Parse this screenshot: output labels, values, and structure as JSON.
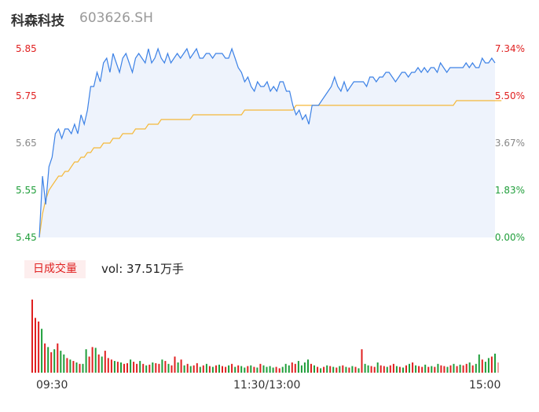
{
  "header": {
    "name": "科森科技",
    "code": "603626.SH"
  },
  "volume_panel": {
    "label": "日成交量",
    "volume_text": "vol: 37.51万手"
  },
  "colors": {
    "price_line": "#3d82e6",
    "avg_line": "#f5b93a",
    "up": "#e02020",
    "down": "#1f9e3a",
    "flat": "#888888",
    "area_fill": "#eef3fc"
  },
  "chart_data": [
    {
      "type": "line",
      "title": "",
      "ylim": [
        5.45,
        5.85
      ],
      "y_ticks_left": [
        "5.85",
        "5.75",
        "5.65",
        "5.55",
        "5.45"
      ],
      "y_ticks_right": [
        "7.34%",
        "5.50%",
        "3.67%",
        "1.83%",
        "0.00%"
      ],
      "x_ticks": [
        "09:30",
        "11:30/13:00",
        "15:00"
      ],
      "grid": false,
      "series": [
        {
          "values": [
            5.45,
            5.58,
            5.52,
            5.6,
            5.62,
            5.67,
            5.68,
            5.66,
            5.68,
            5.68,
            5.67,
            5.69,
            5.67,
            5.71,
            5.69,
            5.72,
            5.77,
            5.77,
            5.8,
            5.78,
            5.82,
            5.83,
            5.8,
            5.84,
            5.82,
            5.8,
            5.83,
            5.84,
            5.82,
            5.8,
            5.83,
            5.84,
            5.83,
            5.82,
            5.85,
            5.82,
            5.83,
            5.85,
            5.83,
            5.82,
            5.84,
            5.82,
            5.83,
            5.84,
            5.83,
            5.84,
            5.85,
            5.83,
            5.84,
            5.85,
            5.83,
            5.83,
            5.84,
            5.84,
            5.83,
            5.84,
            5.84,
            5.84,
            5.83,
            5.83,
            5.85,
            5.83,
            5.81,
            5.8,
            5.78,
            5.79,
            5.77,
            5.76,
            5.78,
            5.77,
            5.77,
            5.78,
            5.76,
            5.77,
            5.76,
            5.78,
            5.78,
            5.76,
            5.76,
            5.73,
            5.71,
            5.72,
            5.7,
            5.71,
            5.69,
            5.73,
            5.73,
            5.73,
            5.74,
            5.75,
            5.76,
            5.77,
            5.79,
            5.77,
            5.76,
            5.78,
            5.76,
            5.77,
            5.78,
            5.78,
            5.78,
            5.78,
            5.77,
            5.79,
            5.79,
            5.78,
            5.79,
            5.79,
            5.8,
            5.8,
            5.79,
            5.78,
            5.79,
            5.8,
            5.8,
            5.79,
            5.8,
            5.8,
            5.81,
            5.8,
            5.81,
            5.8,
            5.81,
            5.81,
            5.8,
            5.82,
            5.81,
            5.8,
            5.81,
            5.81,
            5.81,
            5.81,
            5.81,
            5.82,
            5.81,
            5.82,
            5.81,
            5.81,
            5.83,
            5.82,
            5.82,
            5.83,
            5.82
          ]
        },
        {
          "values": [
            5.45,
            5.5,
            5.53,
            5.55,
            5.56,
            5.57,
            5.58,
            5.58,
            5.59,
            5.59,
            5.6,
            5.61,
            5.61,
            5.62,
            5.62,
            5.63,
            5.63,
            5.64,
            5.64,
            5.64,
            5.65,
            5.65,
            5.65,
            5.66,
            5.66,
            5.66,
            5.67,
            5.67,
            5.67,
            5.67,
            5.68,
            5.68,
            5.68,
            5.68,
            5.69,
            5.69,
            5.69,
            5.69,
            5.7,
            5.7,
            5.7,
            5.7,
            5.7,
            5.7,
            5.7,
            5.7,
            5.7,
            5.7,
            5.71,
            5.71,
            5.71,
            5.71,
            5.71,
            5.71,
            5.71,
            5.71,
            5.71,
            5.71,
            5.71,
            5.71,
            5.71,
            5.71,
            5.71,
            5.71,
            5.72,
            5.72,
            5.72,
            5.72,
            5.72,
            5.72,
            5.72,
            5.72,
            5.72,
            5.72,
            5.72,
            5.72,
            5.72,
            5.72,
            5.72,
            5.72,
            5.73,
            5.73,
            5.73,
            5.73,
            5.73,
            5.73,
            5.73,
            5.73,
            5.73,
            5.73,
            5.73,
            5.73,
            5.73,
            5.73,
            5.73,
            5.73,
            5.73,
            5.73,
            5.73,
            5.73,
            5.73,
            5.73,
            5.73,
            5.73,
            5.73,
            5.73,
            5.73,
            5.73,
            5.73,
            5.73,
            5.73,
            5.73,
            5.73,
            5.73,
            5.73,
            5.73,
            5.73,
            5.73,
            5.73,
            5.73,
            5.73,
            5.73,
            5.73,
            5.73,
            5.73,
            5.73,
            5.73,
            5.73,
            5.73,
            5.73,
            5.74,
            5.74,
            5.74,
            5.74,
            5.74,
            5.74,
            5.74,
            5.74,
            5.74,
            5.74,
            5.74,
            5.74,
            5.74,
            5.74,
            5.74
          ]
        }
      ]
    },
    {
      "type": "bar",
      "title": "",
      "x_ticks": [
        "09:30",
        "11:30/13:00",
        "15:00"
      ],
      "series": [
        {
          "values": [
            100,
            75,
            70,
            60,
            40,
            35,
            28,
            32,
            40,
            30,
            25,
            20,
            18,
            16,
            14,
            12,
            12,
            32,
            22,
            35,
            34,
            25,
            22,
            30,
            20,
            18,
            16,
            15,
            14,
            12,
            13,
            18,
            15,
            12,
            16,
            12,
            10,
            11,
            14,
            13,
            12,
            18,
            16,
            12,
            10,
            22,
            14,
            18,
            10,
            12,
            9,
            10,
            13,
            8,
            10,
            12,
            9,
            8,
            10,
            11,
            9,
            8,
            10,
            12,
            8,
            10,
            9,
            7,
            9,
            10,
            8,
            7,
            12,
            10,
            8,
            9,
            7,
            8,
            6,
            8,
            12,
            10,
            14,
            12,
            16,
            10,
            14,
            18,
            12,
            10,
            8,
            6,
            8,
            10,
            9,
            8,
            7,
            9,
            10,
            8,
            7,
            9,
            8,
            6,
            32,
            12,
            10,
            9,
            8,
            14,
            10,
            9,
            8,
            10,
            12,
            9,
            8,
            7,
            10,
            12,
            14,
            10,
            9,
            8,
            11,
            8,
            9,
            8,
            12,
            10,
            9,
            8,
            10,
            12,
            9,
            11,
            10,
            12,
            14,
            10,
            12,
            25,
            18,
            15,
            20,
            22,
            26,
            14
          ],
          "direction": [
            "up",
            "up",
            "up",
            "down",
            "up",
            "down",
            "up",
            "down",
            "up",
            "down",
            "down",
            "up",
            "down",
            "up",
            "down",
            "up",
            "down",
            "down",
            "up",
            "up",
            "down",
            "up",
            "down",
            "up",
            "up",
            "up",
            "down",
            "up",
            "down",
            "up",
            "up",
            "down",
            "up",
            "up",
            "down",
            "up",
            "down",
            "up",
            "down",
            "up",
            "up",
            "down",
            "up",
            "down",
            "up",
            "up",
            "down",
            "up",
            "down",
            "up",
            "down",
            "up",
            "up",
            "down",
            "up",
            "down",
            "up",
            "down",
            "up",
            "down",
            "up",
            "up",
            "down",
            "up",
            "down",
            "up",
            "down",
            "down",
            "up",
            "down",
            "up",
            "down",
            "up",
            "down",
            "down",
            "down",
            "down",
            "up",
            "up",
            "down",
            "down",
            "down",
            "up",
            "up",
            "down",
            "down",
            "down",
            "down",
            "up",
            "down",
            "up",
            "down",
            "up",
            "down",
            "up",
            "down",
            "up",
            "down",
            "up",
            "down",
            "up",
            "down",
            "up",
            "down",
            "up",
            "down",
            "down",
            "up",
            "up",
            "down",
            "up",
            "up",
            "down",
            "up",
            "up",
            "down",
            "up",
            "down",
            "up",
            "down",
            "up",
            "down",
            "up",
            "up",
            "down",
            "up",
            "down",
            "up",
            "down",
            "up",
            "up",
            "down",
            "up",
            "down",
            "up",
            "down",
            "up",
            "up",
            "down",
            "up",
            "down",
            "down",
            "up",
            "down",
            "down",
            "up",
            "down",
            "flat"
          ]
        }
      ]
    }
  ]
}
